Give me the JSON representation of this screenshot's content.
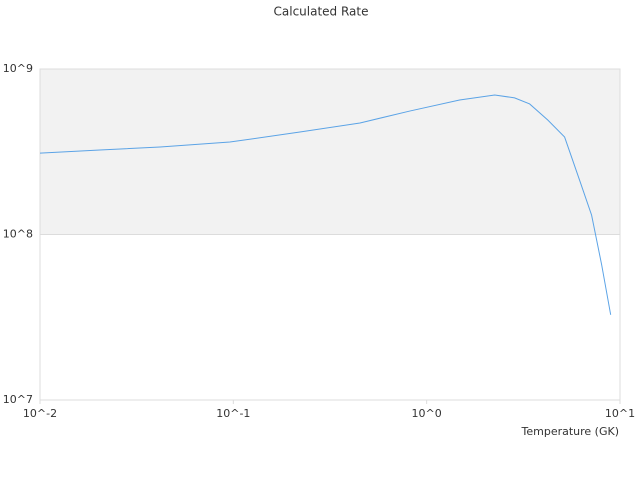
{
  "chart_data": {
    "type": "line",
    "title": "Calculated Rate",
    "x_label": "Temperature (GK)",
    "x_log": true,
    "y_log": true,
    "grid": true,
    "xlim": [
      0.01,
      10
    ],
    "ylim": [
      10000000,
      1000000000
    ],
    "xticks": [
      {
        "value": 0.01,
        "label": "10^-2"
      },
      {
        "value": 0.1,
        "label": "10^-1"
      },
      {
        "value": 1,
        "label": "10^0"
      },
      {
        "value": 10,
        "label": "10^1"
      }
    ],
    "yticks": [
      {
        "value": 10000000,
        "label": "10^7"
      },
      {
        "value": 100000000,
        "label": "10^8"
      },
      {
        "value": 1000000000,
        "label": "10^9"
      }
    ],
    "series": [
      {
        "color": "#5ba3e6",
        "x": [
          0.01,
          0.0204,
          0.0418,
          0.096,
          0.221,
          0.452,
          0.817,
          1.48,
          2.25,
          2.85,
          3.41,
          4.23,
          5.17,
          6.18,
          7.13,
          8.04,
          8.95
        ],
        "values": [
          310000000,
          324000000,
          338000000,
          362000000,
          416000000,
          472000000,
          557000000,
          650000000,
          697000000,
          669000000,
          615000000,
          492000000,
          388000000,
          213000000,
          131000000,
          65500000,
          32700000
        ]
      }
    ]
  }
}
